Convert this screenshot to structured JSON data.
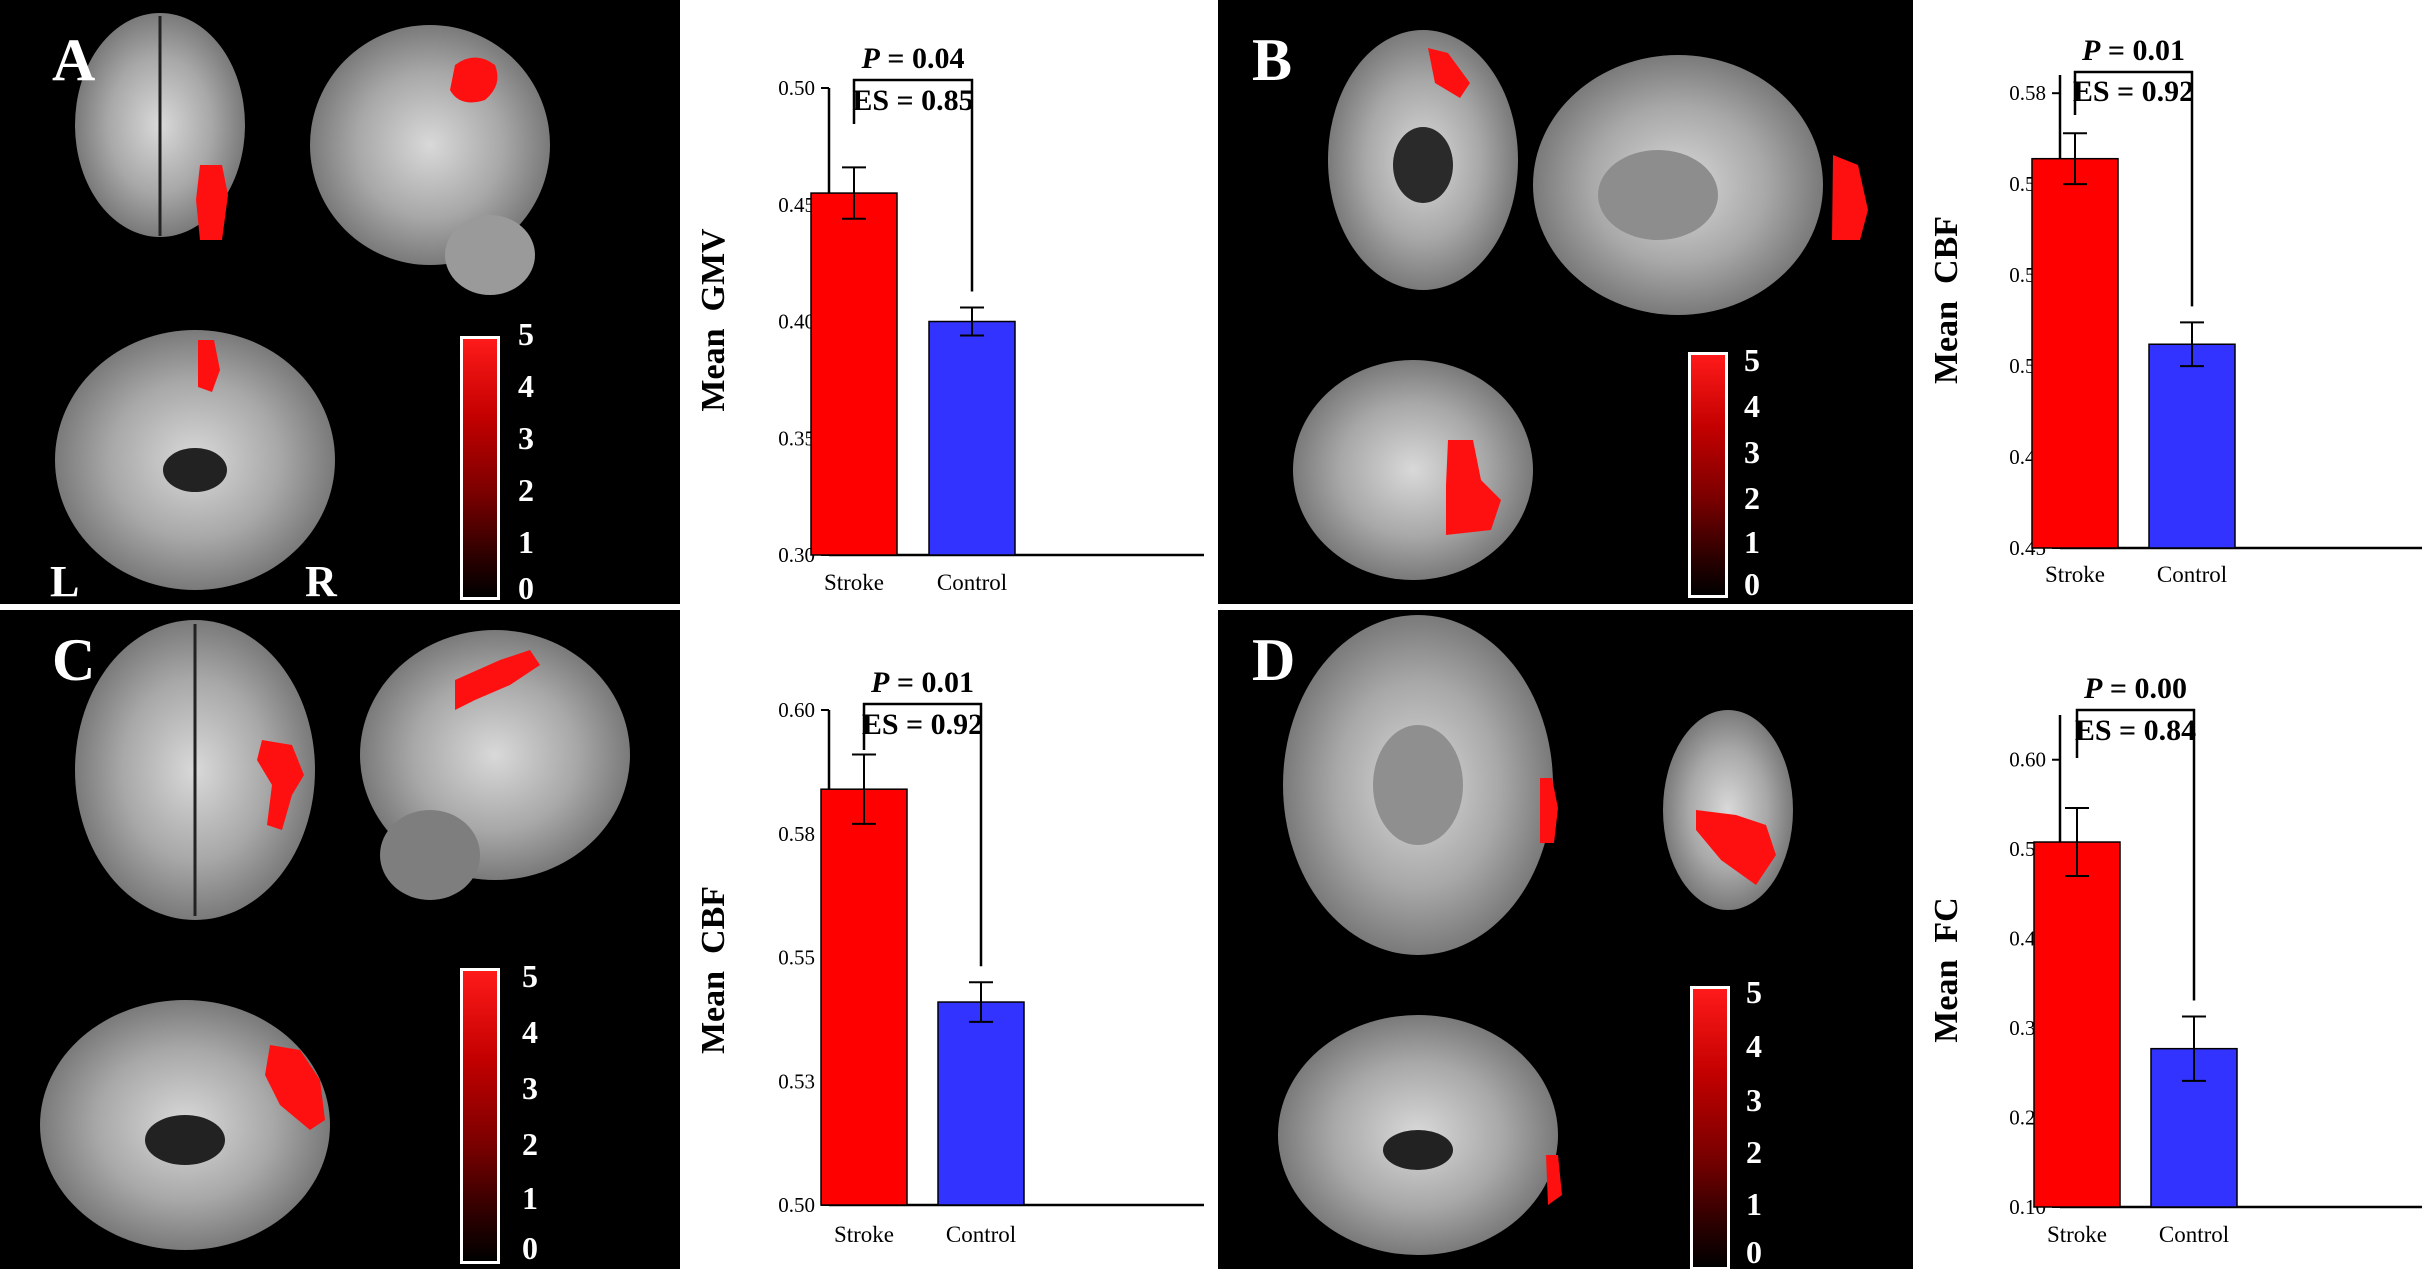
{
  "panels": [
    {
      "letter": "A",
      "orientation": [
        "L",
        "R"
      ],
      "colorbar_ticks": [
        "5",
        "4",
        "3",
        "2",
        "1",
        "0"
      ]
    },
    {
      "letter": "B",
      "colorbar_ticks": [
        "5",
        "4",
        "3",
        "2",
        "1",
        "0"
      ]
    },
    {
      "letter": "C",
      "colorbar_ticks": [
        "5",
        "4",
        "3",
        "2",
        "1",
        "0"
      ]
    },
    {
      "letter": "D",
      "colorbar_ticks": [
        "5",
        "4",
        "3",
        "2",
        "1",
        "0"
      ]
    }
  ],
  "colors": {
    "stroke": "#ff0000",
    "control": "#3333ff",
    "activation": "#ff1010"
  },
  "chart_data": [
    {
      "type": "bar",
      "categories": [
        "Stroke",
        "Control"
      ],
      "values": [
        0.455,
        0.4
      ],
      "errors": [
        0.011,
        0.006
      ],
      "ylabel": "Mean  GMV",
      "ylim": [
        0.3,
        0.5
      ],
      "yticks": [
        "0.30",
        "0.35",
        "0.40",
        "0.45",
        "0.50"
      ],
      "ytick_values": [
        0.3,
        0.35,
        0.4,
        0.45,
        0.5
      ],
      "annotation": {
        "p_label": "P",
        "p_value": " = 0.04",
        "es": "ES = 0.85"
      }
    },
    {
      "type": "bar",
      "categories": [
        "Stroke",
        "Control"
      ],
      "values": [
        0.557,
        0.506
      ],
      "errors": [
        0.007,
        0.006
      ],
      "ylabel": "Mean  CBF",
      "ylim": [
        0.45,
        0.58
      ],
      "yticks": [
        "0.45",
        "0.48",
        "0.50",
        "0.53",
        "0.55",
        "0.58"
      ],
      "ytick_values": [
        0.45,
        0.475,
        0.5,
        0.525,
        0.55,
        0.575
      ],
      "annotation": {
        "p_label": "P",
        "p_value": " = 0.01",
        "es": "ES = 0.92"
      }
    },
    {
      "type": "bar",
      "categories": [
        "Stroke",
        "Control"
      ],
      "values": [
        0.584,
        0.541
      ],
      "errors": [
        0.007,
        0.004
      ],
      "ylabel": "Mean  CBF",
      "ylim": [
        0.5,
        0.6
      ],
      "yticks": [
        "0.50",
        "0.53",
        "0.55",
        "0.58",
        "0.60"
      ],
      "ytick_values": [
        0.5,
        0.525,
        0.55,
        0.575,
        0.6
      ],
      "annotation": {
        "p_label": "P",
        "p_value": " = 0.01",
        "es": "ES = 0.92"
      }
    },
    {
      "type": "bar",
      "categories": [
        "Stroke",
        "Control"
      ],
      "values": [
        0.508,
        0.277
      ],
      "errors": [
        0.038,
        0.036
      ],
      "ylabel": "Mean  FC",
      "ylim": [
        0.1,
        0.65
      ],
      "yticks": [
        "0.10",
        "0.20",
        "0.30",
        "0.40",
        "0.50",
        "0.60"
      ],
      "ytick_values": [
        0.1,
        0.2,
        0.3,
        0.4,
        0.5,
        0.6
      ],
      "annotation": {
        "p_label": "P",
        "p_value": " = 0.00",
        "es": "ES = 0.84"
      }
    }
  ]
}
